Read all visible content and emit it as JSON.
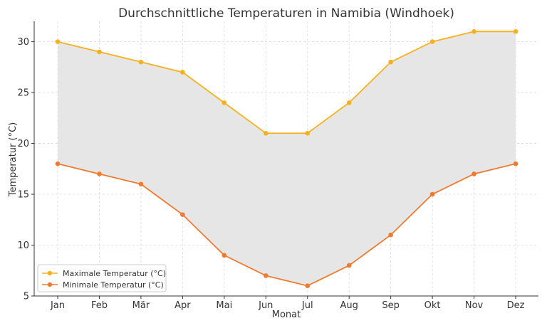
{
  "chart_data": {
    "type": "line",
    "title": "Durchschnittliche Temperaturen in Namibia (Windhoek)",
    "xlabel": "Monat",
    "ylabel": "Temperatur (°C)",
    "categories": [
      "Jan",
      "Feb",
      "Mär",
      "Apr",
      "Mai",
      "Jun",
      "Jul",
      "Aug",
      "Sep",
      "Okt",
      "Nov",
      "Dez"
    ],
    "series": [
      {
        "name": "Maximale Temperatur (°C)",
        "values": [
          30,
          29,
          28,
          27,
          24,
          21,
          21,
          24,
          28,
          30,
          31,
          31
        ],
        "color": "#f7b11e"
      },
      {
        "name": "Minimale Temperatur (°C)",
        "values": [
          18,
          17,
          16,
          13,
          9,
          7,
          6,
          8,
          11,
          15,
          17,
          18
        ],
        "color": "#ee7b30"
      }
    ],
    "fill_between": {
      "color": "#e6e6e6"
    },
    "ylim": [
      5,
      32
    ],
    "yticks": [
      5,
      10,
      15,
      20,
      25,
      30
    ],
    "grid": true,
    "legend_position": "lower-left"
  }
}
